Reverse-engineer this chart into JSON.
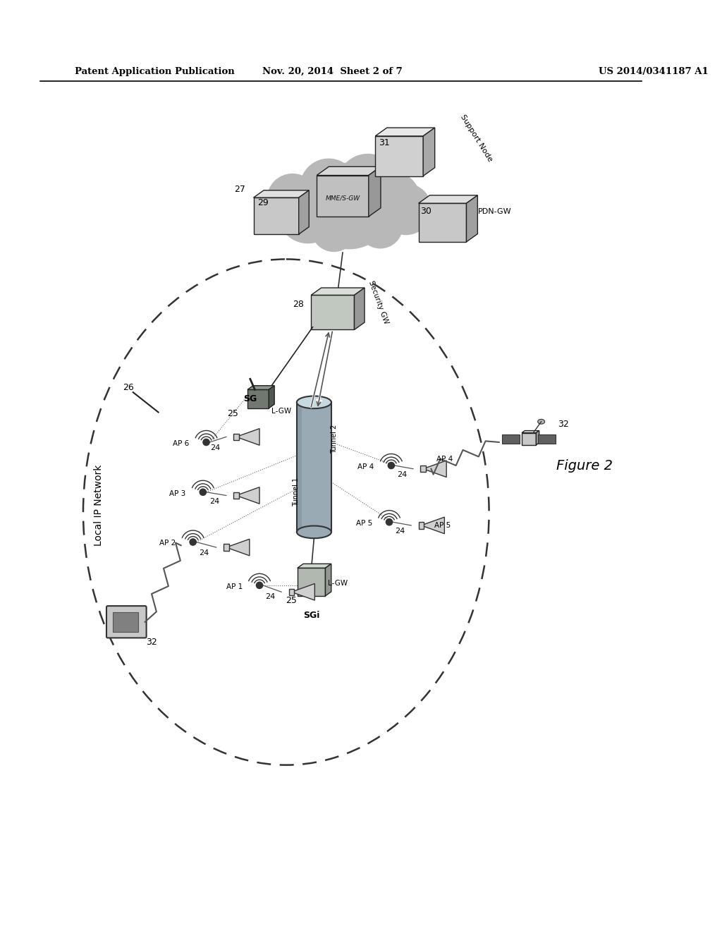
{
  "header_left": "Patent Application Publication",
  "header_mid": "Nov. 20, 2014  Sheet 2 of 7",
  "header_right": "US 2014/0341187 A1",
  "figure_label": "Figure 2",
  "bg_color": "#ffffff"
}
